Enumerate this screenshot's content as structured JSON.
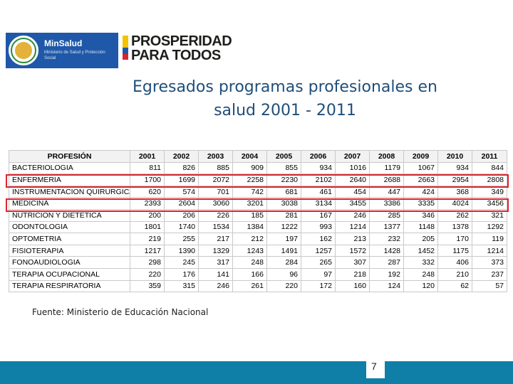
{
  "header": {
    "minsalud_name": "MinSalud",
    "minsalud_subtitle": "Ministerio de Salud y Protección Social",
    "prosperidad_line1": "PROSPERIDAD",
    "prosperidad_line2": "PARA TODOS",
    "colors": {
      "minsalud_blue": "#1f58a8",
      "flag_yellow": "#f4c300",
      "flag_blue": "#1f58a8",
      "flag_red": "#d9262e"
    }
  },
  "title": {
    "line1": "Egresados programas profesionales en",
    "line2": "salud 2001 - 2011"
  },
  "table": {
    "headers": [
      "PROFESIÓN",
      "2001",
      "2002",
      "2003",
      "2004",
      "2005",
      "2006",
      "2007",
      "2008",
      "2009",
      "2010",
      "2011"
    ],
    "rows": [
      [
        "BACTERIOLOGIA",
        "811",
        "826",
        "885",
        "909",
        "855",
        "934",
        "1016",
        "1179",
        "1067",
        "934",
        "844"
      ],
      [
        "ENFERMERIA",
        "1700",
        "1699",
        "2072",
        "2258",
        "2230",
        "2102",
        "2640",
        "2688",
        "2663",
        "2954",
        "2808"
      ],
      [
        "INSTRUMENTACION QUIRURGICA",
        "620",
        "574",
        "701",
        "742",
        "681",
        "461",
        "454",
        "447",
        "424",
        "368",
        "349"
      ],
      [
        "MEDICINA",
        "2393",
        "2604",
        "3060",
        "3201",
        "3038",
        "3134",
        "3455",
        "3386",
        "3335",
        "4024",
        "3456"
      ],
      [
        "NUTRICION Y DIETETICA",
        "200",
        "206",
        "226",
        "185",
        "281",
        "167",
        "246",
        "285",
        "346",
        "262",
        "321"
      ],
      [
        "ODONTOLOGIA",
        "1801",
        "1740",
        "1534",
        "1384",
        "1222",
        "993",
        "1214",
        "1377",
        "1148",
        "1378",
        "1292"
      ],
      [
        "OPTOMETRIA",
        "219",
        "255",
        "217",
        "212",
        "197",
        "162",
        "213",
        "232",
        "205",
        "170",
        "119"
      ],
      [
        "FISIOTERAPIA",
        "1217",
        "1390",
        "1329",
        "1243",
        "1491",
        "1257",
        "1572",
        "1428",
        "1452",
        "1175",
        "1214"
      ],
      [
        "FONOAUDIOLOGIA",
        "298",
        "245",
        "317",
        "248",
        "284",
        "265",
        "307",
        "287",
        "332",
        "406",
        "373"
      ],
      [
        "TERAPIA OCUPACIONAL",
        "220",
        "176",
        "141",
        "166",
        "96",
        "97",
        "218",
        "192",
        "248",
        "210",
        "237"
      ],
      [
        "TERAPIA RESPIRATORIA",
        "359",
        "315",
        "246",
        "261",
        "220",
        "172",
        "160",
        "124",
        "120",
        "62",
        "57"
      ]
    ],
    "highlight_color": "#d9262e"
  },
  "source": "Fuente: Ministerio de Educación Nacional",
  "footer": {
    "page_number": "7",
    "color": "#0f7fa8"
  }
}
